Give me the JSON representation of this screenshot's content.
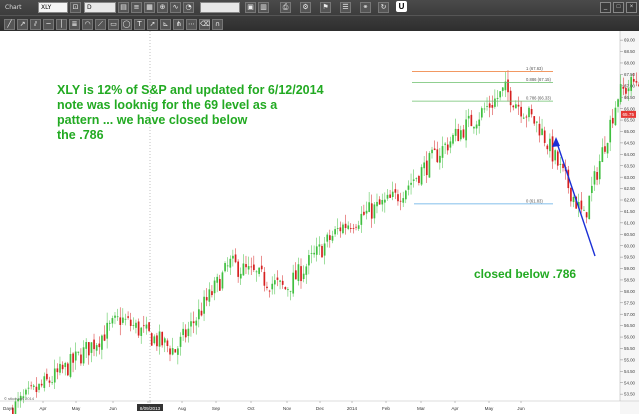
{
  "toolbar": {
    "tab_label": "Chart",
    "symbol_value": "XLY",
    "period_value": "D",
    "mode_button": "U"
  },
  "annotations": {
    "main_note_lines": [
      "XLY is 12% of S&P and updated for 6/12/2014",
      "note was looknig for the 69 level as a",
      "pattern ... we have closed below",
      "the .786"
    ],
    "side_note": "closed below .786",
    "copyright": "© stkcharts 2014",
    "note_color": "#22aa22",
    "arrow_color": "#1a2fd6"
  },
  "fib_levels": [
    {
      "label": "1 (67.63)",
      "value": 67.63,
      "color": "#f08a4b"
    },
    {
      "label": "0.886 (67.15)",
      "value": 67.15,
      "color": "#6bbf6b"
    },
    {
      "label": "0.786 (66.33)",
      "value": 66.33,
      "color": "#6bbf6b"
    },
    {
      "label": "0 (61.83)",
      "value": 61.83,
      "color": "#5aa9e6"
    }
  ],
  "price_badge": {
    "label": "65.75",
    "color": "#e53935"
  },
  "chart_data": {
    "type": "candlestick",
    "x_tick_labels": [
      "Apr",
      "May",
      "Jun",
      "Jul",
      "8/09/2013",
      "Aug",
      "Sep",
      "Oct",
      "Nov",
      "Dec",
      "2014",
      "Feb",
      "Mar",
      "Apr",
      "May",
      "Jun"
    ],
    "x_left_label": "Days",
    "y_tick_labels": [
      "69.00",
      "68.50",
      "68.00",
      "67.50",
      "67.00",
      "66.50",
      "66.00",
      "65.50",
      "65.00",
      "64.50",
      "64.00",
      "63.50",
      "63.00",
      "62.50",
      "62.00",
      "61.50",
      "61.00",
      "60.50",
      "60.00",
      "59.50",
      "59.00",
      "58.50",
      "58.00",
      "57.50",
      "57.00",
      "56.50",
      "56.00",
      "55.50",
      "55.00",
      "54.50",
      "54.00",
      "53.50"
    ],
    "ylim": [
      53.2,
      69.4
    ],
    "up_color": "#3fbf3f",
    "down_color": "#d62020",
    "segments": [
      {
        "months": 1,
        "start": 52.8,
        "end": 54.6
      },
      {
        "months": 1,
        "start": 54.6,
        "end": 56.8
      },
      {
        "months": 1,
        "start": 56.8,
        "end": 55.4
      },
      {
        "months": 1,
        "start": 55.4,
        "end": 59.2
      },
      {
        "months": 1,
        "start": 59.2,
        "end": 58.1
      },
      {
        "months": 1,
        "start": 58.1,
        "end": 60.8
      },
      {
        "months": 1,
        "start": 60.8,
        "end": 62.1
      },
      {
        "months": 1,
        "start": 62.1,
        "end": 64.6
      },
      {
        "months": 1,
        "start": 64.6,
        "end": 66.8
      },
      {
        "months": 0.6,
        "start": 66.8,
        "end": 65.2
      },
      {
        "months": 0.8,
        "start": 65.2,
        "end": 61.2
      },
      {
        "months": 0.6,
        "start": 61.2,
        "end": 66.6
      },
      {
        "months": 0.5,
        "start": 66.6,
        "end": 67.6
      },
      {
        "months": 1,
        "start": 67.6,
        "end": 62.3
      },
      {
        "months": 1,
        "start": 62.3,
        "end": 63.8
      },
      {
        "months": 0.7,
        "start": 63.8,
        "end": 67.1
      },
      {
        "months": 0.3,
        "start": 67.1,
        "end": 65.75
      }
    ]
  }
}
